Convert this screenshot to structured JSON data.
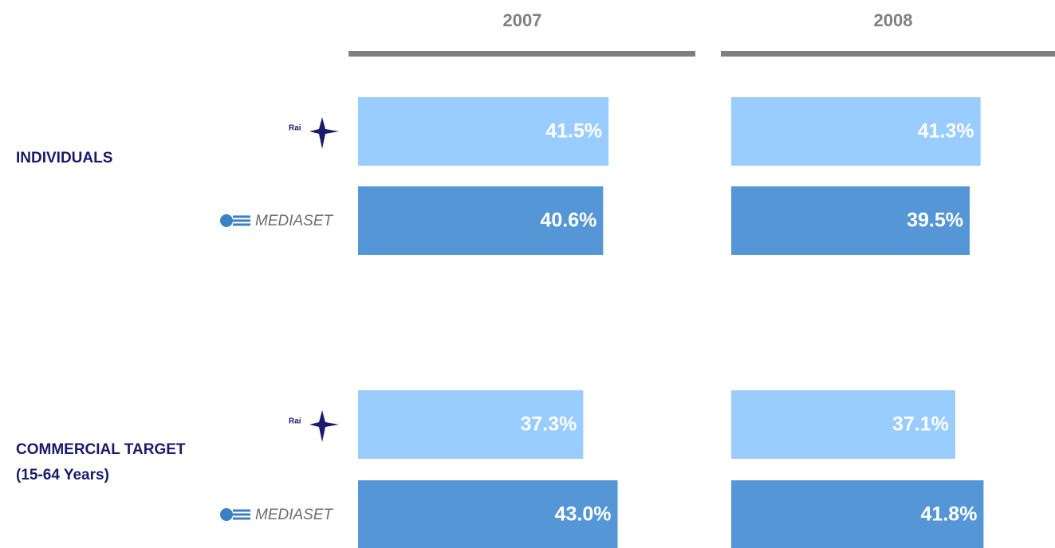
{
  "chart_data": {
    "type": "bar",
    "panels": [
      "2007",
      "2008"
    ],
    "groups": [
      [
        "INDIVIDUALS"
      ],
      [
        "COMMERCIAL TARGET",
        "(15-64 Years)"
      ]
    ],
    "series": [
      {
        "name": "Rai",
        "color": "#99ccff",
        "values": [
          [
            41.5,
            41.3
          ],
          [
            37.3,
            37.1
          ]
        ],
        "value_labels": [
          [
            "41.5%",
            "41.3%"
          ],
          [
            "37.3%",
            "37.1%"
          ]
        ]
      },
      {
        "name": "MEDIASET",
        "color": "#5596d6",
        "values": [
          [
            40.6,
            39.5
          ],
          [
            43.0,
            41.8
          ]
        ],
        "value_labels": [
          [
            "40.6%",
            "39.5%"
          ],
          [
            "43.0%",
            "41.8%"
          ]
        ]
      }
    ]
  }
}
